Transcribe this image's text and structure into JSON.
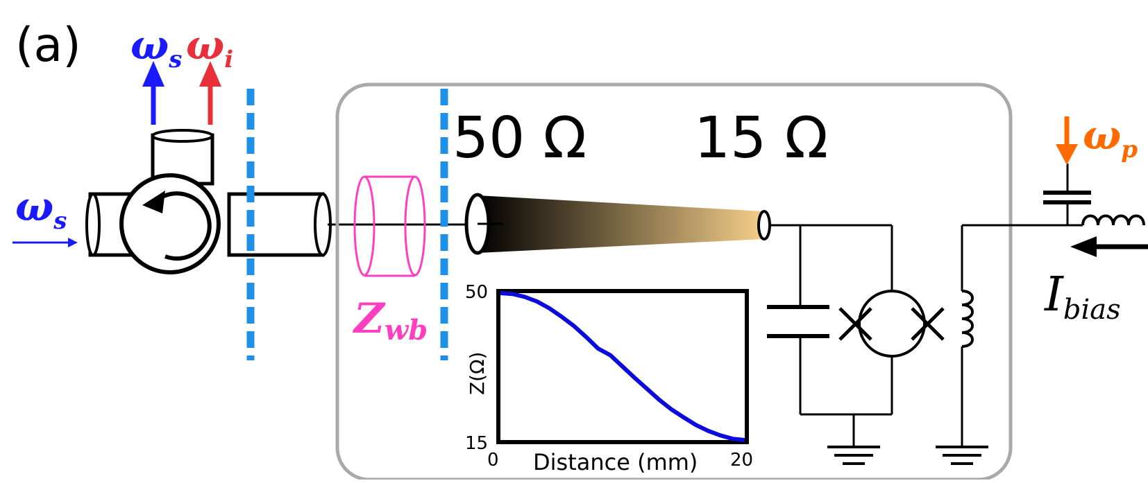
{
  "panel_label": "(a)",
  "labels": {
    "omega_s_top": "ω",
    "omega_s_top_sub": "s",
    "omega_i_top": "ω",
    "omega_i_top_sub": "i",
    "omega_s_left": "ω",
    "omega_s_left_sub": "s",
    "omega_p": "ω",
    "omega_p_sub": "p",
    "z_wb": "Z",
    "z_wb_sub": "wb",
    "z50": "50 Ω",
    "z15": "15 Ω",
    "i_bias": "I",
    "i_bias_sub": "bias"
  },
  "colors": {
    "signal": "#1a1aff",
    "idler": "#e8303a",
    "pump": "#ff6a00",
    "zwb": "#ff3fbf",
    "dashed": "#1e90e6",
    "box": "#a9a9a9",
    "taper_start": "#000000",
    "taper_end": "#f5cf8a",
    "curve": "#0b0bdc"
  },
  "chart_data": {
    "type": "line",
    "title": "",
    "xlabel": "Distance (mm)",
    "ylabel": "Z(Ω)",
    "xlim": [
      0,
      20
    ],
    "ylim": [
      15,
      50
    ],
    "x_ticks": [
      "0",
      "20"
    ],
    "y_ticks": [
      "50",
      "15"
    ],
    "series": [
      {
        "x": [
          0,
          1,
          2,
          3,
          4,
          5,
          6,
          7,
          8,
          9,
          10,
          11,
          12,
          13,
          14,
          15,
          16,
          17,
          18,
          19,
          20
        ],
        "values": [
          50,
          49.8,
          49.1,
          48.0,
          46.4,
          44.4,
          42.2,
          39.6,
          36.8,
          35.2,
          32.5,
          29.8,
          27.2,
          24.6,
          22.3,
          20.4,
          18.6,
          17.2,
          16.1,
          15.3,
          15
        ]
      }
    ]
  }
}
